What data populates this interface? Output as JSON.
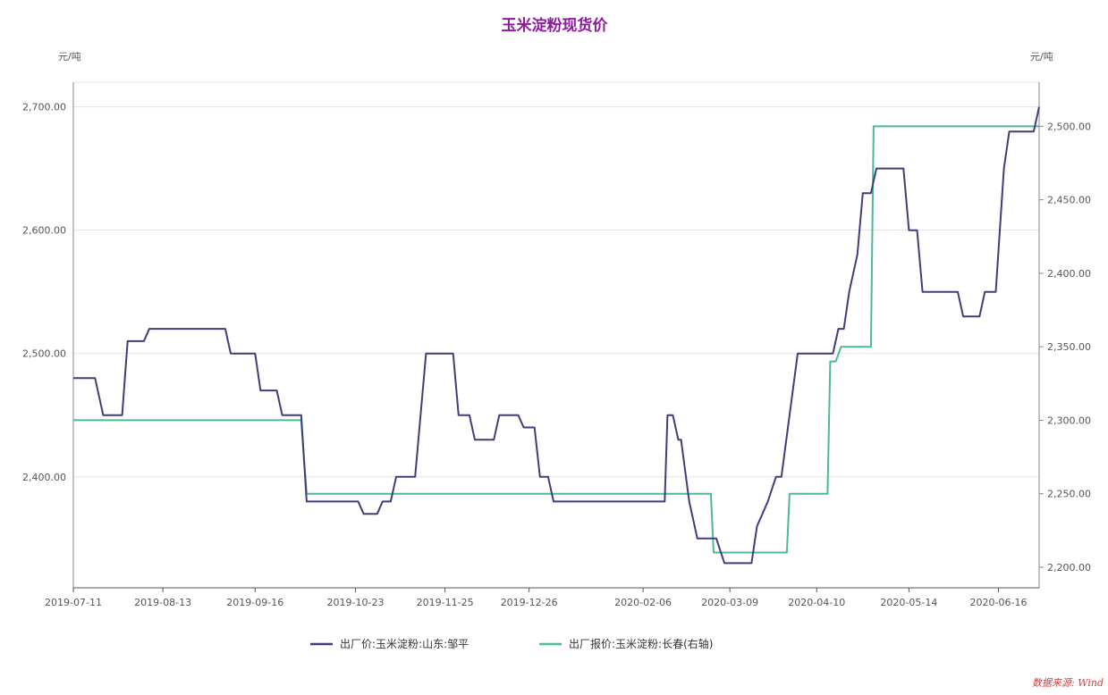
{
  "chart_data": {
    "type": "line",
    "title": "玉米淀粉现货价",
    "left_unit": "元/吨",
    "right_unit": "元/吨",
    "x_tick_labels": [
      "2019-07-11",
      "2019-08-13",
      "2019-09-16",
      "2019-10-23",
      "2019-11-25",
      "2019-12-26",
      "2020-02-06",
      "2020-03-09",
      "2020-04-10",
      "2020-05-14",
      "2020-06-16"
    ],
    "left_axis": {
      "ylim": [
        2310,
        2720
      ],
      "ticks": [
        2400,
        2500,
        2600,
        2700
      ],
      "tick_labels": [
        "2,400.00",
        "2,500.00",
        "2,600.00",
        "2,700.00"
      ]
    },
    "right_axis": {
      "ylim": [
        2186,
        2530
      ],
      "ticks": [
        2200,
        2250,
        2300,
        2350,
        2400,
        2450,
        2500
      ],
      "tick_labels": [
        "2,200.00",
        "2,250.00",
        "2,300.00",
        "2,350.00",
        "2,400.00",
        "2,450.00",
        "2,500.00"
      ]
    },
    "grid": true,
    "legend_position": "bottom-center",
    "source": "数据来源: Wind",
    "series": [
      {
        "name": "出厂价:玉米淀粉:山东:邹平",
        "axis": "left",
        "color": "#3f3d7a",
        "points": [
          [
            "2019-07-11",
            2480
          ],
          [
            "2019-07-19",
            2480
          ],
          [
            "2019-07-22",
            2450
          ],
          [
            "2019-07-29",
            2450
          ],
          [
            "2019-07-31",
            2510
          ],
          [
            "2019-08-06",
            2510
          ],
          [
            "2019-08-08",
            2520
          ],
          [
            "2019-09-05",
            2520
          ],
          [
            "2019-09-07",
            2500
          ],
          [
            "2019-09-16",
            2500
          ],
          [
            "2019-09-18",
            2470
          ],
          [
            "2019-09-24",
            2470
          ],
          [
            "2019-09-26",
            2450
          ],
          [
            "2019-10-03",
            2450
          ],
          [
            "2019-10-05",
            2380
          ],
          [
            "2019-10-24",
            2380
          ],
          [
            "2019-10-26",
            2370
          ],
          [
            "2019-10-31",
            2370
          ],
          [
            "2019-11-02",
            2380
          ],
          [
            "2019-11-05",
            2380
          ],
          [
            "2019-11-07",
            2400
          ],
          [
            "2019-11-14",
            2400
          ],
          [
            "2019-11-16",
            2450
          ],
          [
            "2019-11-18",
            2500
          ],
          [
            "2019-11-28",
            2500
          ],
          [
            "2019-11-30",
            2450
          ],
          [
            "2019-12-04",
            2450
          ],
          [
            "2019-12-06",
            2430
          ],
          [
            "2019-12-13",
            2430
          ],
          [
            "2019-12-15",
            2450
          ],
          [
            "2019-12-22",
            2450
          ],
          [
            "2019-12-24",
            2440
          ],
          [
            "2019-12-28",
            2440
          ],
          [
            "2019-12-30",
            2400
          ],
          [
            "2020-01-02",
            2400
          ],
          [
            "2020-01-04",
            2380
          ],
          [
            "2020-02-14",
            2380
          ],
          [
            "2020-02-15",
            2450
          ],
          [
            "2020-02-17",
            2450
          ],
          [
            "2020-02-19",
            2430
          ],
          [
            "2020-02-20",
            2430
          ],
          [
            "2020-02-23",
            2380
          ],
          [
            "2020-02-26",
            2350
          ],
          [
            "2020-03-04",
            2350
          ],
          [
            "2020-03-07",
            2330
          ],
          [
            "2020-03-17",
            2330
          ],
          [
            "2020-03-19",
            2360
          ],
          [
            "2020-03-21",
            2370
          ],
          [
            "2020-03-23",
            2380
          ],
          [
            "2020-03-26",
            2400
          ],
          [
            "2020-03-28",
            2400
          ],
          [
            "2020-04-03",
            2500
          ],
          [
            "2020-04-16",
            2500
          ],
          [
            "2020-04-18",
            2520
          ],
          [
            "2020-04-20",
            2520
          ],
          [
            "2020-04-22",
            2550
          ],
          [
            "2020-04-25",
            2580
          ],
          [
            "2020-04-27",
            2630
          ],
          [
            "2020-04-30",
            2630
          ],
          [
            "2020-05-02",
            2650
          ],
          [
            "2020-05-12",
            2650
          ],
          [
            "2020-05-14",
            2600
          ],
          [
            "2020-05-17",
            2600
          ],
          [
            "2020-05-19",
            2550
          ],
          [
            "2020-06-01",
            2550
          ],
          [
            "2020-06-03",
            2530
          ],
          [
            "2020-06-09",
            2530
          ],
          [
            "2020-06-11",
            2550
          ],
          [
            "2020-06-15",
            2550
          ],
          [
            "2020-06-18",
            2650
          ],
          [
            "2020-06-20",
            2680
          ],
          [
            "2020-06-29",
            2680
          ],
          [
            "2020-07-01",
            2700
          ]
        ]
      },
      {
        "name": "出厂报价:玉米淀粉:长春(右轴)",
        "axis": "right",
        "color": "#4db89a",
        "points": [
          [
            "2019-07-11",
            2300
          ],
          [
            "2019-10-03",
            2300
          ],
          [
            "2019-10-05",
            2250
          ],
          [
            "2020-03-02",
            2250
          ],
          [
            "2020-03-03",
            2210
          ],
          [
            "2020-03-30",
            2210
          ],
          [
            "2020-03-31",
            2250
          ],
          [
            "2020-04-14",
            2250
          ],
          [
            "2020-04-15",
            2340
          ],
          [
            "2020-04-17",
            2340
          ],
          [
            "2020-04-19",
            2350
          ],
          [
            "2020-04-30",
            2350
          ],
          [
            "2020-05-01",
            2500
          ],
          [
            "2020-07-01",
            2500
          ]
        ]
      }
    ]
  }
}
